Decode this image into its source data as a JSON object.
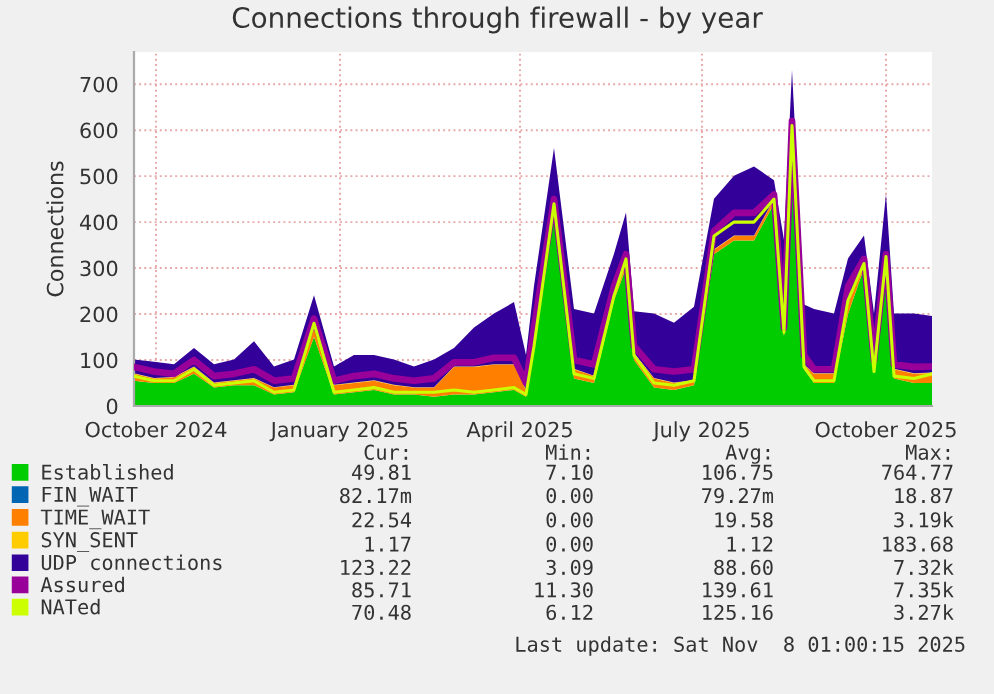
{
  "chart_data": {
    "type": "area",
    "title": "Connections through firewall - by year",
    "ylabel": "Connections",
    "stacked": true,
    "grid": true,
    "legend": "bottom",
    "x": [
      "2024-10-05",
      "2024-10-15",
      "2024-10-25",
      "2024-11-04",
      "2024-11-14",
      "2024-11-24",
      "2024-12-04",
      "2024-12-14",
      "2024-12-24",
      "2025-01-03",
      "2025-01-13",
      "2025-01-23",
      "2025-02-02",
      "2025-02-12",
      "2025-02-22",
      "2025-03-04",
      "2025-03-14",
      "2025-03-24",
      "2025-04-03",
      "2025-04-13",
      "2025-04-19",
      "2025-04-23",
      "2025-05-03",
      "2025-05-13",
      "2025-05-23",
      "2025-06-02",
      "2025-06-08",
      "2025-06-12",
      "2025-06-22",
      "2025-07-02",
      "2025-07-12",
      "2025-07-22",
      "2025-08-01",
      "2025-08-11",
      "2025-08-21",
      "2025-08-26",
      "2025-08-30",
      "2025-09-05",
      "2025-09-10",
      "2025-09-20",
      "2025-09-27",
      "2025-10-05",
      "2025-10-10",
      "2025-10-16",
      "2025-10-20",
      "2025-10-30",
      "2025-11-08"
    ],
    "xlim": [
      "2024-10-05",
      "2025-11-08"
    ],
    "xticks": [
      {
        "value": "2024-10-16",
        "label": "October 2024"
      },
      {
        "value": "2025-01-16",
        "label": "January 2025"
      },
      {
        "value": "2025-04-16",
        "label": "April 2025"
      },
      {
        "value": "2025-07-16",
        "label": "July 2025"
      },
      {
        "value": "2025-10-16",
        "label": "October 2025"
      }
    ],
    "ylim": [
      0,
      770
    ],
    "yticks": [
      0,
      100,
      200,
      300,
      400,
      500,
      600,
      700
    ],
    "series": [
      {
        "name": "Established",
        "color": "#00cc00",
        "values": [
          55,
          50,
          50,
          70,
          40,
          45,
          45,
          25,
          30,
          150,
          25,
          30,
          35,
          25,
          25,
          20,
          25,
          25,
          30,
          35,
          20,
          120,
          430,
          60,
          50,
          230,
          300,
          100,
          40,
          35,
          45,
          330,
          360,
          360,
          440,
          150,
          600,
          80,
          50,
          50,
          200,
          300,
          70,
          320,
          60,
          50,
          50
        ]
      },
      {
        "name": "FIN_WAIT",
        "color": "#0066b3",
        "values": [
          null,
          null,
          null,
          null,
          null,
          null,
          null,
          null,
          null,
          null,
          null,
          null,
          null,
          null,
          null,
          null,
          null,
          null,
          null,
          null,
          null,
          null,
          null,
          null,
          null,
          null,
          null,
          null,
          null,
          null,
          null,
          null,
          null,
          null,
          null,
          null,
          null,
          null,
          null,
          null,
          null,
          null,
          null,
          null,
          null,
          null,
          null
        ]
      },
      {
        "name": "TIME_WAIT",
        "color": "#ff8000",
        "values": [
          15,
          10,
          12,
          15,
          10,
          10,
          15,
          15,
          15,
          20,
          20,
          20,
          20,
          20,
          15,
          20,
          60,
          60,
          60,
          55,
          15,
          20,
          10,
          20,
          15,
          10,
          10,
          15,
          20,
          15,
          10,
          10,
          10,
          10,
          10,
          10,
          10,
          10,
          20,
          20,
          20,
          15,
          20,
          10,
          20,
          20,
          22
        ]
      },
      {
        "name": "SYN_SENT",
        "color": "#ffcc00",
        "values": [
          1,
          1,
          1,
          1,
          1,
          1,
          1,
          1,
          1,
          1,
          1,
          1,
          1,
          1,
          1,
          1,
          1,
          1,
          1,
          1,
          1,
          1,
          1,
          1,
          1,
          1,
          1,
          1,
          1,
          1,
          1,
          1,
          1,
          1,
          1,
          1,
          1,
          1,
          1,
          1,
          1,
          1,
          1,
          1,
          1,
          1,
          1
        ]
      },
      {
        "name": "UDP connections",
        "color": "#330099",
        "values": [
          30,
          35,
          28,
          40,
          40,
          45,
          80,
          45,
          55,
          70,
          40,
          60,
          55,
          55,
          45,
          60,
          40,
          85,
          110,
          135,
          75,
          120,
          120,
          130,
          135,
          90,
          110,
          90,
          140,
          130,
          160,
          110,
          130,
          150,
          40,
          200,
          120,
          130,
          140,
          130,
          100,
          55,
          110,
          130,
          120,
          130,
          123
        ]
      },
      {
        "name": "Assured",
        "color": "#990099",
        "type": "line",
        "values": [
          85,
          75,
          70,
          100,
          65,
          70,
          80,
          55,
          60,
          190,
          55,
          65,
          70,
          60,
          55,
          60,
          95,
          95,
          105,
          105,
          50,
          170,
          450,
          100,
          90,
          260,
          330,
          130,
          80,
          75,
          80,
          380,
          420,
          420,
          460,
          170,
          620,
          110,
          80,
          80,
          260,
          320,
          100,
          330,
          90,
          85,
          86
        ]
      },
      {
        "name": "NATed",
        "color": "#ccff00",
        "type": "line",
        "values": [
          65,
          55,
          55,
          80,
          45,
          50,
          55,
          30,
          35,
          180,
          30,
          35,
          40,
          30,
          30,
          30,
          35,
          30,
          35,
          40,
          25,
          130,
          440,
          70,
          60,
          240,
          320,
          110,
          50,
          45,
          55,
          370,
          400,
          400,
          450,
          160,
          610,
          85,
          55,
          55,
          230,
          310,
          75,
          325,
          65,
          60,
          70
        ]
      }
    ],
    "annotations": [
      "Cur:",
      "Min:",
      "Avg:",
      "Max:",
      "49.81",
      "7.10",
      "106.75",
      "764.77",
      "82.17m",
      "0.00",
      "79.27m",
      "18.87",
      "22.54",
      "0.00",
      "19.58",
      "3.19k",
      "1.17",
      "0.00",
      "1.12",
      "183.68",
      "123.22",
      "3.09",
      "88.60",
      "7.32k",
      "85.71",
      "11.30",
      "139.61",
      "7.35k",
      "70.48",
      "6.12",
      "125.16",
      "3.27k",
      "Last update: Sat Nov  8 01:00:15 2025"
    ]
  }
}
